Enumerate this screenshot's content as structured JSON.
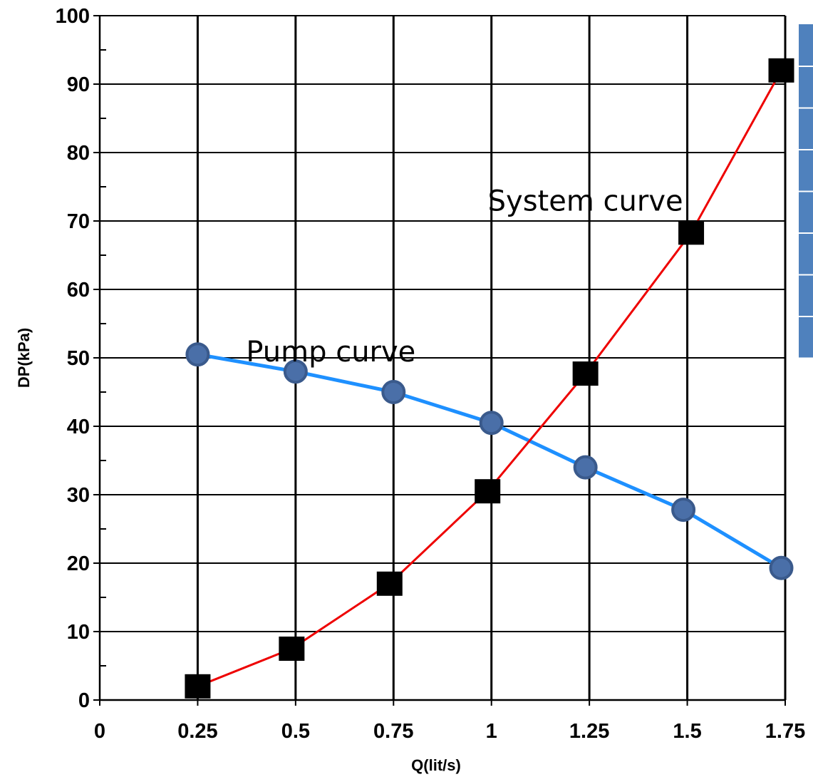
{
  "chart_data": {
    "type": "line",
    "xlabel": "Q(lit/s)",
    "ylabel": "DP(kPa)",
    "xlim": [
      0,
      1.75
    ],
    "ylim": [
      0,
      100
    ],
    "x_ticks": [
      "0",
      "0.25",
      "0.5",
      "0.75",
      "1",
      "1.25",
      "1.5",
      "1.75"
    ],
    "y_ticks": [
      "0",
      "10",
      "20",
      "30",
      "40",
      "50",
      "60",
      "70",
      "80",
      "90",
      "100"
    ],
    "grid": true,
    "legend": "right (cropped)",
    "series": [
      {
        "color": "#1e90ff",
        "marker": "circle",
        "marker_color": "#4a6fa8",
        "points": [
          {
            "x": 0.25,
            "y": 50.5
          },
          {
            "x": 0.5,
            "y": 48.0
          },
          {
            "x": 0.75,
            "y": 45.0
          },
          {
            "x": 1.0,
            "y": 40.5
          },
          {
            "x": 1.24,
            "y": 34.0
          },
          {
            "x": 1.49,
            "y": 27.8
          },
          {
            "x": 1.74,
            "y": 19.3
          }
        ]
      },
      {
        "color": "#ee0000",
        "marker": "square",
        "marker_color": "#000000",
        "points": [
          {
            "x": 0.25,
            "y": 2.0
          },
          {
            "x": 0.49,
            "y": 7.5
          },
          {
            "x": 0.74,
            "y": 17.0
          },
          {
            "x": 0.99,
            "y": 30.5
          },
          {
            "x": 1.24,
            "y": 47.7
          },
          {
            "x": 1.51,
            "y": 68.3
          },
          {
            "x": 1.74,
            "y": 92.0
          }
        ]
      }
    ],
    "annotations": [
      {
        "text": "System curve",
        "x": 1.24,
        "y": 71.5
      },
      {
        "text": "Pump curve",
        "x": 0.59,
        "y": 49.5
      }
    ]
  }
}
